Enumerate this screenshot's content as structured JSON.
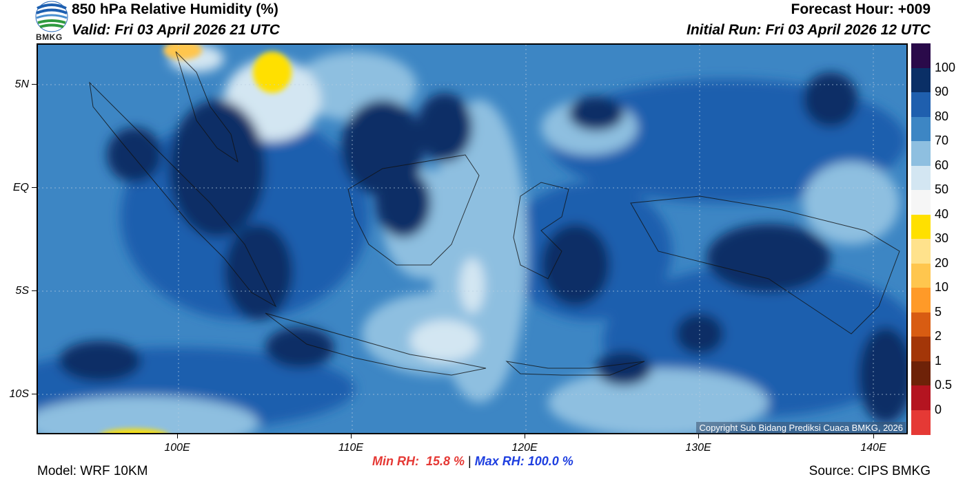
{
  "header": {
    "title": "850 hPa Relative Humidity (%)",
    "valid": "Valid: Fri 03 April 2026 21 UTC",
    "forecast_hour": "Forecast Hour: +009",
    "initial_run": "Initial Run: Fri 03 April 2026 12 UTC",
    "logo_text": "BMKG"
  },
  "footer": {
    "model": "Model: WRF 10KM",
    "source": "Source: CIPS BMKG",
    "min_rh": "Min RH:  15.8 %",
    "separator": " | ",
    "max_rh": "Max RH: 100.0 %"
  },
  "map": {
    "copyright": "Copyright Sub Bidang Prediksi Cuaca BMKG, 2026",
    "lat_labels": [
      "5N",
      "EQ",
      "5S",
      "10S"
    ],
    "lon_labels": [
      "100E",
      "110E",
      "120E",
      "130E",
      "140E"
    ]
  },
  "colorbar": {
    "labels": [
      "100",
      "90",
      "80",
      "70",
      "60",
      "50",
      "40",
      "30",
      "20",
      "10",
      "5",
      "2",
      "1",
      "0.5",
      "0"
    ],
    "colors": [
      "#2a0a4a",
      "#0a2f66",
      "#1f5fae",
      "#3d86c4",
      "#8ebfe0",
      "#d3e6f2",
      "#f6f6f6",
      "#ffe000",
      "#ffe28c",
      "#ffc64e",
      "#ff9a28",
      "#d85c12",
      "#a33608",
      "#6e2208",
      "#b41420",
      "#e53935"
    ]
  }
}
